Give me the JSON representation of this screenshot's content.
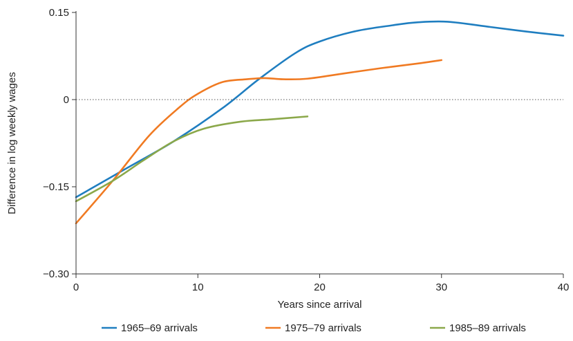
{
  "chart_data": {
    "type": "line",
    "title": "",
    "xlabel": "Years since arrival",
    "ylabel": "Difference in log weekly wages",
    "xlim": [
      0,
      40
    ],
    "ylim": [
      -0.3,
      0.15
    ],
    "x_ticks": [
      0,
      10,
      20,
      30,
      40
    ],
    "y_ticks": [
      -0.3,
      -0.15,
      0,
      0.15
    ],
    "x_tick_labels": [
      "0",
      "10",
      "20",
      "30",
      "40"
    ],
    "y_tick_labels": [
      "−0.30",
      "−0.15",
      "0",
      "0.15"
    ],
    "grid": false,
    "zero_reference_line": "dotted",
    "legend_position": "bottom",
    "series": [
      {
        "name": "1965–69 arrivals",
        "color": "#1f7ec0",
        "x": [
          0,
          4,
          8,
          12,
          15,
          18,
          20,
          23,
          26,
          28,
          30.5,
          34,
          37,
          40
        ],
        "y": [
          -0.168,
          -0.12,
          -0.072,
          -0.015,
          0.035,
          0.08,
          0.1,
          0.118,
          0.128,
          0.133,
          0.134,
          0.125,
          0.117,
          0.11
        ]
      },
      {
        "name": "1975–79 arrivals",
        "color": "#f07a22",
        "x": [
          0,
          3,
          6,
          8.5,
          10,
          12,
          14,
          15.5,
          17,
          19,
          22,
          25,
          28,
          30
        ],
        "y": [
          -0.213,
          -0.14,
          -0.062,
          -0.013,
          0.01,
          0.03,
          0.035,
          0.037,
          0.035,
          0.036,
          0.045,
          0.054,
          0.062,
          0.068
        ]
      },
      {
        "name": "1985–89 arrivals",
        "color": "#8ba84a",
        "x": [
          0,
          3,
          5.5,
          8,
          10.5,
          13.5,
          16,
          19
        ],
        "y": [
          -0.175,
          -0.14,
          -0.105,
          -0.072,
          -0.05,
          -0.038,
          -0.034,
          -0.029
        ]
      }
    ]
  }
}
